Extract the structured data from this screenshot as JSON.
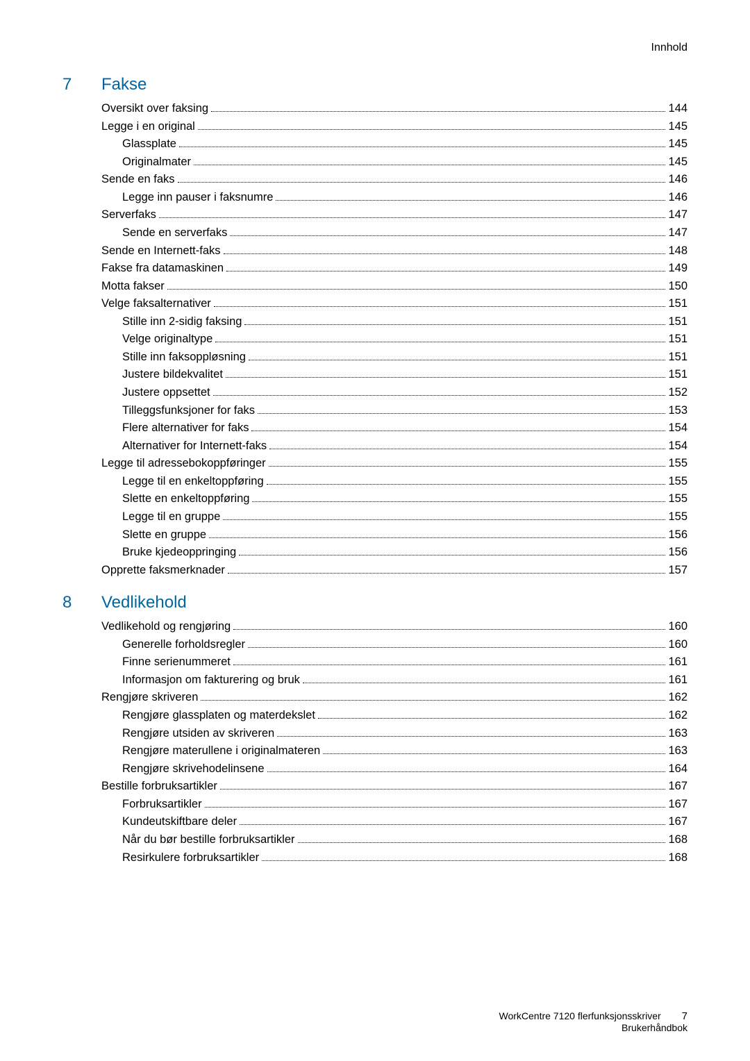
{
  "header": "Innhold",
  "chapters": [
    {
      "num": "7",
      "title": "Fakse",
      "entries": [
        {
          "label": "Oversikt over faksing",
          "page": "144",
          "indent": 0
        },
        {
          "label": "Legge i en original",
          "page": "145",
          "indent": 0
        },
        {
          "label": "Glassplate",
          "page": "145",
          "indent": 1
        },
        {
          "label": "Originalmater",
          "page": "145",
          "indent": 1
        },
        {
          "label": "Sende en faks",
          "page": "146",
          "indent": 0
        },
        {
          "label": "Legge inn pauser i faksnumre",
          "page": "146",
          "indent": 1
        },
        {
          "label": "Serverfaks",
          "page": "147",
          "indent": 0
        },
        {
          "label": "Sende en serverfaks",
          "page": "147",
          "indent": 1
        },
        {
          "label": "Sende en Internett-faks",
          "page": "148",
          "indent": 0
        },
        {
          "label": "Fakse fra datamaskinen",
          "page": "149",
          "indent": 0
        },
        {
          "label": "Motta fakser",
          "page": "150",
          "indent": 0
        },
        {
          "label": "Velge faksalternativer",
          "page": "151",
          "indent": 0
        },
        {
          "label": "Stille inn 2-sidig faksing",
          "page": "151",
          "indent": 1
        },
        {
          "label": "Velge originaltype",
          "page": "151",
          "indent": 1
        },
        {
          "label": "Stille inn faksoppløsning",
          "page": "151",
          "indent": 1
        },
        {
          "label": "Justere bildekvalitet",
          "page": "151",
          "indent": 1
        },
        {
          "label": "Justere oppsettet",
          "page": "152",
          "indent": 1
        },
        {
          "label": "Tilleggsfunksjoner for faks",
          "page": "153",
          "indent": 1
        },
        {
          "label": "Flere alternativer for faks",
          "page": "154",
          "indent": 1
        },
        {
          "label": "Alternativer for Internett-faks",
          "page": "154",
          "indent": 1
        },
        {
          "label": "Legge til adressebokoppføringer",
          "page": "155",
          "indent": 0
        },
        {
          "label": "Legge til en enkeltoppføring",
          "page": "155",
          "indent": 1
        },
        {
          "label": "Slette en enkeltoppføring",
          "page": "155",
          "indent": 1
        },
        {
          "label": "Legge til en gruppe",
          "page": "155",
          "indent": 1
        },
        {
          "label": "Slette en gruppe",
          "page": "156",
          "indent": 1
        },
        {
          "label": "Bruke kjedeoppringing",
          "page": "156",
          "indent": 1
        },
        {
          "label": "Opprette faksmerknader",
          "page": "157",
          "indent": 0
        }
      ]
    },
    {
      "num": "8",
      "title": "Vedlikehold",
      "entries": [
        {
          "label": "Vedlikehold og rengjøring",
          "page": "160",
          "indent": 0
        },
        {
          "label": "Generelle forholdsregler",
          "page": "160",
          "indent": 1
        },
        {
          "label": "Finne serienummeret",
          "page": "161",
          "indent": 1
        },
        {
          "label": "Informasjon om fakturering og bruk",
          "page": "161",
          "indent": 1
        },
        {
          "label": "Rengjøre skriveren",
          "page": "162",
          "indent": 0
        },
        {
          "label": "Rengjøre glassplaten og materdekslet",
          "page": "162",
          "indent": 1
        },
        {
          "label": "Rengjøre utsiden av skriveren",
          "page": "163",
          "indent": 1
        },
        {
          "label": "Rengjøre materullene i originalmateren",
          "page": "163",
          "indent": 1
        },
        {
          "label": "Rengjøre skrivehodelinsene",
          "page": "164",
          "indent": 1
        },
        {
          "label": "Bestille forbruksartikler",
          "page": "167",
          "indent": 0
        },
        {
          "label": "Forbruksartikler",
          "page": "167",
          "indent": 1
        },
        {
          "label": "Kundeutskiftbare deler",
          "page": "167",
          "indent": 1
        },
        {
          "label": "Når du bør bestille forbruksartikler",
          "page": "168",
          "indent": 1
        },
        {
          "label": "Resirkulere forbruksartikler",
          "page": "168",
          "indent": 1
        }
      ]
    }
  ],
  "footer": {
    "line1": "WorkCentre 7120 flerfunksjonsskriver",
    "line2": "Brukerhåndbok",
    "pagenum": "7"
  },
  "colors": {
    "accent": "#0066a1",
    "text": "#000000",
    "background": "#ffffff"
  },
  "typography": {
    "body_fontsize": 16.5,
    "chapter_fontsize": 24,
    "header_fontsize": 16,
    "footer_fontsize": 14
  }
}
